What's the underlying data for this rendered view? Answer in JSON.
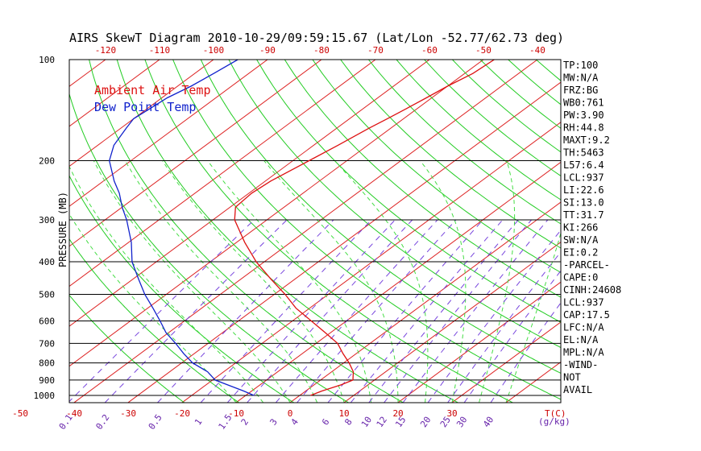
{
  "colors": {
    "isotherm": "#dd2222",
    "dry_adiabat": "#22cc22",
    "moist_adiabat": "#44dd44",
    "mixing_ratio": "#7744dd",
    "air_temp": "#dd1111",
    "dew_point": "#1122cc",
    "text": "#000000",
    "temp_tick": "#cc0000",
    "mr_tick": "#6622aa"
  },
  "chart_data": {
    "type": "line",
    "title": "AIRS SkewT Diagram 2010-10-29/09:59:15.67 (Lat/Lon -52.77/62.73 deg)",
    "ylabel": "PRESSURE (MB)",
    "y_scale": "log",
    "ylim": [
      1050,
      100
    ],
    "pressure_ticks": [
      100,
      200,
      300,
      400,
      500,
      600,
      700,
      800,
      900,
      1000
    ],
    "pressure_tick_labels": [
      "100",
      "200",
      "300",
      "400",
      "500",
      "600",
      "700",
      "800",
      "900",
      "1000"
    ],
    "top_temp_ticks": [
      -120,
      -110,
      -100,
      -90,
      -80,
      -70,
      -60,
      -50,
      -40
    ],
    "top_temp_tick_labels": [
      "-120",
      "-110",
      "-100",
      "-90",
      "-80",
      "-70",
      "-60",
      "-50",
      "-40"
    ],
    "bottom_temp_ticks": [
      -50,
      -40,
      -30,
      -20,
      -10,
      0,
      10,
      20,
      30
    ],
    "bottom_temp_tick_labels": [
      "-50",
      "-40",
      "-30",
      "-20",
      "-10",
      "0",
      "10",
      "20",
      "30"
    ],
    "bottom_temp_unit": "T(C)",
    "mixing_ratio_ticks": [
      0.1,
      0.2,
      0.5,
      1,
      1.5,
      2,
      3,
      4,
      6,
      8,
      10,
      12,
      15,
      20,
      25,
      30,
      40
    ],
    "mixing_ratio_tick_labels": [
      "0.1",
      "0.2",
      "0.5",
      "1",
      "1.5",
      "2",
      "3",
      "4",
      "6",
      "8",
      "10",
      "12",
      "15",
      "20",
      "25",
      "30",
      "40"
    ],
    "mixing_ratio_unit": "(g/kg)",
    "isotherms": [
      -130,
      -120,
      -110,
      -100,
      -90,
      -80,
      -70,
      -60,
      -50,
      -40,
      -30,
      -20,
      -10,
      0,
      10,
      20,
      30,
      40
    ],
    "dry_adiabats_theta_K": [
      250,
      260,
      270,
      280,
      290,
      300,
      310,
      320,
      330,
      340,
      350,
      360,
      370,
      380,
      390,
      400,
      410,
      420,
      430,
      440,
      450,
      460,
      470
    ],
    "moist_adiabats_start_C": [
      -10,
      -5,
      0,
      5,
      10,
      15,
      20,
      25,
      30,
      35,
      40
    ],
    "series": [
      {
        "name": "Ambient Air Temp",
        "pressure": [
          1000,
          970,
          930,
          900,
          850,
          800,
          750,
          700,
          650,
          600,
          550,
          500,
          450,
          400,
          350,
          300,
          275,
          250,
          230,
          200,
          180,
          160,
          150,
          140,
          130,
          120,
          110,
          100
        ],
        "temperature": [
          2.0,
          3.0,
          5.0,
          6.0,
          4.0,
          1.0,
          -2.5,
          -6.0,
          -11.0,
          -16.5,
          -22.5,
          -28.0,
          -34.5,
          -41.5,
          -48.5,
          -56.0,
          -59.0,
          -59.5,
          -59.0,
          -57.0,
          -55.5,
          -54.0,
          -53.0,
          -52.0,
          -51.0,
          -50.0,
          -48.5,
          -48.0
        ]
      },
      {
        "name": "Dew Point Temp",
        "pressure": [
          1000,
          970,
          930,
          900,
          850,
          800,
          750,
          700,
          650,
          600,
          550,
          500,
          450,
          400,
          350,
          300,
          275,
          250,
          230,
          200,
          180,
          160,
          150,
          140,
          130,
          120,
          110,
          100
        ],
        "temperature": [
          -8.5,
          -11.5,
          -16.0,
          -19.5,
          -23.0,
          -28.0,
          -32.0,
          -36.0,
          -40.5,
          -44.5,
          -49.0,
          -54.0,
          -59.0,
          -64.5,
          -69.5,
          -76.0,
          -80.0,
          -84.0,
          -88.0,
          -94.0,
          -97.0,
          -99.0,
          -100.0,
          -99.5,
          -99.0,
          -97.5,
          -96.5,
          -95.5
        ]
      }
    ],
    "indices": [
      "TP:100",
      "MW:N/A",
      "FRZ:BG",
      "WB0:761",
      "PW:3.90",
      "RH:44.8",
      "MAXT:9.2",
      "TH:5463",
      "L57:6.4",
      "LCL:937",
      "LI:22.6",
      "SI:13.0",
      "TT:31.7",
      "KI:266",
      "SW:N/A",
      "EI:0.2",
      "-PARCEL-",
      "CAPE:0",
      "CINH:24608",
      "LCL:937",
      "CAP:17.5",
      "LFC:N/A",
      "EL:N/A",
      "MPL:N/A",
      "-WIND-",
      "NOT",
      "AVAIL"
    ],
    "grid": true,
    "legend": "top-left"
  }
}
